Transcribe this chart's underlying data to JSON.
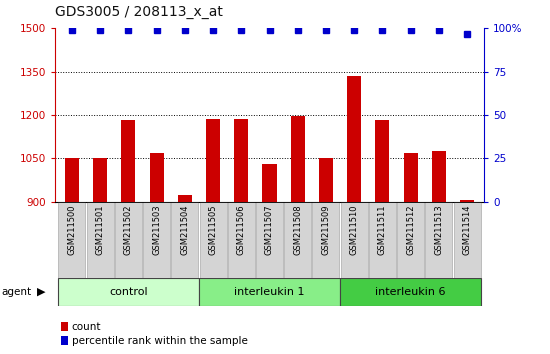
{
  "title": "GDS3005 / 208113_x_at",
  "categories": [
    "GSM211500",
    "GSM211501",
    "GSM211502",
    "GSM211503",
    "GSM211504",
    "GSM211505",
    "GSM211506",
    "GSM211507",
    "GSM211508",
    "GSM211509",
    "GSM211510",
    "GSM211511",
    "GSM211512",
    "GSM211513",
    "GSM211514"
  ],
  "bar_values": [
    1052,
    1052,
    1182,
    1070,
    923,
    1188,
    1185,
    1030,
    1198,
    1050,
    1335,
    1183,
    1068,
    1075,
    905
  ],
  "dot_values": [
    99,
    99,
    99,
    99,
    99,
    99,
    99,
    99,
    99,
    99,
    99,
    99,
    99,
    99,
    97
  ],
  "bar_color": "#cc0000",
  "dot_color": "#0000cc",
  "ylim_left": [
    900,
    1500
  ],
  "ylim_right": [
    0,
    100
  ],
  "yticks_left": [
    900,
    1050,
    1200,
    1350,
    1500
  ],
  "yticks_right": [
    0,
    25,
    50,
    75,
    100
  ],
  "groups": [
    {
      "label": "control",
      "start": 0,
      "end": 5,
      "color": "#ccffcc"
    },
    {
      "label": "interleukin 1",
      "start": 5,
      "end": 10,
      "color": "#88ee88"
    },
    {
      "label": "interleukin 6",
      "start": 10,
      "end": 15,
      "color": "#44cc44"
    }
  ],
  "agent_label": "agent",
  "legend_count_label": "count",
  "legend_pct_label": "percentile rank within the sample",
  "bar_width": 0.5,
  "grid_color": "#000000",
  "tick_color_left": "#cc0000",
  "tick_color_right": "#0000cc",
  "background_color": "#ffffff",
  "label_box_color": "#d4d4d4",
  "label_box_edge": "#aaaaaa"
}
